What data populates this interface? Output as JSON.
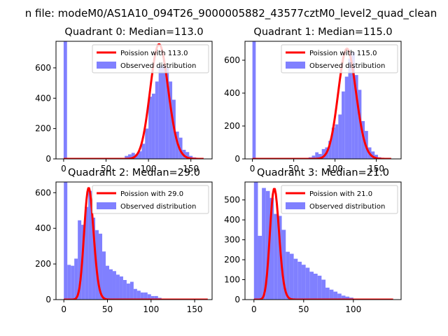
{
  "figure": {
    "suptitle": "n file: modeM0/AS1A10_094T26_9000005882_43577cztM0_level2_quad_clean"
  },
  "colors": {
    "histogram": "#8080ff",
    "poisson": "#ff0000",
    "axes": "#000000",
    "background": "#ffffff"
  },
  "chart_data": [
    {
      "type": "bar",
      "title": "Quadrant 0: Median=113.0",
      "xlim": [
        -9,
        175
      ],
      "ylim": [
        0,
        775
      ],
      "xticks": [
        0,
        50,
        100,
        150
      ],
      "yticks": [
        0,
        200,
        400,
        600
      ],
      "legend_position": "top-right",
      "legend": [
        "Poission with 113.0",
        "Observed distribution"
      ],
      "histogram": {
        "name": "Observed distribution",
        "bin_width": 4,
        "bins": [
          [
            0,
            4,
            775
          ],
          [
            64,
            68,
            5
          ],
          [
            68,
            72,
            5
          ],
          [
            72,
            76,
            20
          ],
          [
            76,
            80,
            30
          ],
          [
            80,
            84,
            40
          ],
          [
            84,
            88,
            30
          ],
          [
            88,
            92,
            50
          ],
          [
            92,
            96,
            100
          ],
          [
            96,
            100,
            200
          ],
          [
            100,
            104,
            410
          ],
          [
            104,
            108,
            430
          ],
          [
            108,
            112,
            510
          ],
          [
            112,
            116,
            610
          ],
          [
            116,
            120,
            620
          ],
          [
            120,
            124,
            600
          ],
          [
            124,
            128,
            510
          ],
          [
            128,
            132,
            390
          ],
          [
            132,
            136,
            180
          ],
          [
            136,
            140,
            140
          ],
          [
            140,
            144,
            60
          ],
          [
            144,
            148,
            45
          ],
          [
            148,
            152,
            20
          ],
          [
            152,
            156,
            10
          ],
          [
            156,
            160,
            5
          ]
        ]
      },
      "poisson": {
        "name": "Poission with 113.0",
        "lambda": 113.0,
        "x_range": [
          0,
          165
        ],
        "peak": 755
      }
    },
    {
      "type": "bar",
      "title": "Quadrant 1: Median=115.0",
      "xlim": [
        -9,
        180
      ],
      "ylim": [
        0,
        715
      ],
      "xticks": [
        0,
        50,
        100,
        150
      ],
      "yticks": [
        0,
        200,
        400,
        600
      ],
      "legend_position": "top-right",
      "legend": [
        "Poission with 115.0",
        "Observed distribution"
      ],
      "histogram": {
        "name": "Observed distribution",
        "bin_width": 4,
        "bins": [
          [
            0,
            4,
            715
          ],
          [
            68,
            72,
            10
          ],
          [
            72,
            76,
            20
          ],
          [
            76,
            80,
            40
          ],
          [
            80,
            84,
            30
          ],
          [
            84,
            88,
            60
          ],
          [
            88,
            92,
            70
          ],
          [
            92,
            96,
            110
          ],
          [
            96,
            100,
            190
          ],
          [
            100,
            104,
            210
          ],
          [
            104,
            108,
            270
          ],
          [
            108,
            112,
            410
          ],
          [
            112,
            116,
            500
          ],
          [
            116,
            120,
            610
          ],
          [
            120,
            124,
            650
          ],
          [
            124,
            128,
            510
          ],
          [
            128,
            132,
            420
          ],
          [
            132,
            136,
            230
          ],
          [
            136,
            140,
            170
          ],
          [
            140,
            144,
            70
          ],
          [
            144,
            148,
            45
          ],
          [
            148,
            152,
            25
          ],
          [
            152,
            156,
            10
          ]
        ]
      },
      "poisson": {
        "name": "Poission with 115.0",
        "lambda": 115.0,
        "x_range": [
          0,
          168
        ],
        "peak": 670
      }
    },
    {
      "type": "bar",
      "title": "Quadrant 2: Median=29.0",
      "xlim": [
        -9,
        170
      ],
      "ylim": [
        0,
        660
      ],
      "xticks": [
        0,
        50,
        100,
        150
      ],
      "yticks": [
        0,
        200,
        400,
        600
      ],
      "legend_position": "top-right",
      "legend": [
        "Poission with 29.0",
        "Observed distribution"
      ],
      "histogram": {
        "name": "Observed distribution",
        "bin_width": 4,
        "bins": [
          [
            0,
            4,
            660
          ],
          [
            4,
            8,
            195
          ],
          [
            8,
            12,
            190
          ],
          [
            12,
            16,
            230
          ],
          [
            16,
            20,
            445
          ],
          [
            20,
            24,
            420
          ],
          [
            24,
            28,
            520
          ],
          [
            28,
            32,
            610
          ],
          [
            32,
            36,
            460
          ],
          [
            36,
            40,
            390
          ],
          [
            40,
            44,
            370
          ],
          [
            44,
            48,
            270
          ],
          [
            48,
            52,
            190
          ],
          [
            52,
            56,
            170
          ],
          [
            56,
            60,
            160
          ],
          [
            60,
            64,
            140
          ],
          [
            64,
            68,
            130
          ],
          [
            68,
            72,
            110
          ],
          [
            72,
            76,
            90
          ],
          [
            76,
            80,
            100
          ],
          [
            80,
            84,
            60
          ],
          [
            84,
            88,
            50
          ],
          [
            88,
            92,
            40
          ],
          [
            92,
            96,
            40
          ],
          [
            96,
            100,
            30
          ],
          [
            100,
            104,
            20
          ],
          [
            104,
            108,
            20
          ],
          [
            108,
            112,
            10
          ],
          [
            112,
            116,
            5
          ],
          [
            116,
            120,
            5
          ]
        ]
      },
      "poisson": {
        "name": "Poission with 29.0",
        "lambda": 29.0,
        "x_range": [
          0,
          165
        ],
        "peak": 625
      }
    },
    {
      "type": "bar",
      "title": "Quadrant 3: Median=21.0",
      "xlim": [
        -9,
        148
      ],
      "ylim": [
        0,
        590
      ],
      "xticks": [
        0,
        50,
        100
      ],
      "yticks": [
        0,
        100,
        200,
        300,
        400,
        500
      ],
      "legend_position": "top-right",
      "legend": [
        "Poission with 21.0",
        "Observed distribution"
      ],
      "histogram": {
        "name": "Observed distribution",
        "bin_width": 4,
        "bins": [
          [
            0,
            4,
            590
          ],
          [
            4,
            8,
            320
          ],
          [
            8,
            12,
            560
          ],
          [
            12,
            16,
            545
          ],
          [
            16,
            20,
            510
          ],
          [
            20,
            24,
            430
          ],
          [
            24,
            28,
            420
          ],
          [
            28,
            32,
            350
          ],
          [
            32,
            36,
            240
          ],
          [
            36,
            40,
            230
          ],
          [
            40,
            44,
            205
          ],
          [
            44,
            48,
            190
          ],
          [
            48,
            52,
            175
          ],
          [
            52,
            56,
            160
          ],
          [
            56,
            60,
            140
          ],
          [
            60,
            64,
            130
          ],
          [
            64,
            68,
            120
          ],
          [
            68,
            72,
            100
          ],
          [
            72,
            76,
            60
          ],
          [
            76,
            80,
            50
          ],
          [
            80,
            84,
            40
          ],
          [
            84,
            88,
            30
          ],
          [
            88,
            92,
            20
          ],
          [
            92,
            96,
            15
          ],
          [
            96,
            100,
            10
          ],
          [
            100,
            104,
            5
          ],
          [
            104,
            108,
            5
          ]
        ]
      },
      "poisson": {
        "name": "Poission with 21.0",
        "lambda": 21.0,
        "x_range": [
          0,
          140
        ],
        "peak": 555
      }
    }
  ]
}
